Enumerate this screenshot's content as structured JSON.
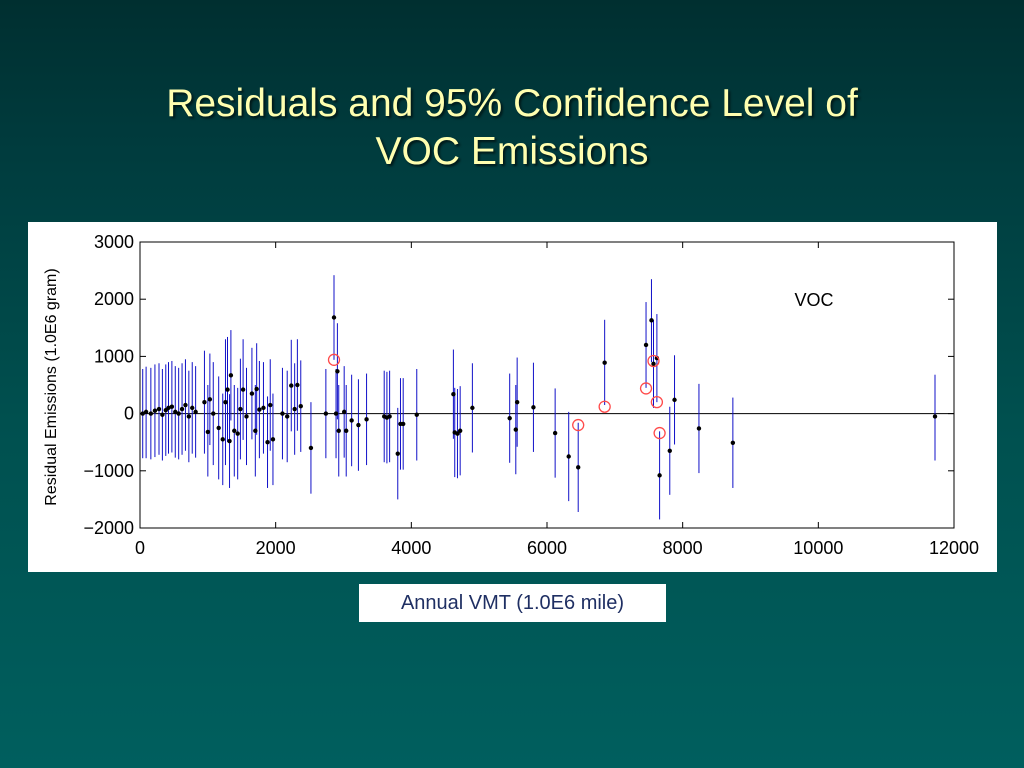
{
  "slide": {
    "title_line1": "Residuals and 95% Confidence Level of",
    "title_line2": "VOC Emissions"
  },
  "colors": {
    "title": "#ffffb0",
    "background_top": "#002f30",
    "background_bottom": "#005f5e",
    "error_bar": "#1010c8",
    "point": "#000000",
    "outlier_circle": "#ff4a4a",
    "x_label_text": "#1f2f63"
  },
  "chart_data": {
    "type": "scatter",
    "title": "",
    "annotation": "VOC",
    "xlabel": "Annual VMT (1.0E6 mile)",
    "ylabel": "Residual Emissions (1.0E6 gram)",
    "xlim": [
      0,
      12000
    ],
    "ylim": [
      -2000,
      3000
    ],
    "xticks": [
      0,
      2000,
      4000,
      6000,
      8000,
      10000,
      12000
    ],
    "yticks": [
      -2000,
      -1000,
      0,
      1000,
      2000,
      3000
    ],
    "xtick_labels": [
      "0",
      "2000",
      "4000",
      "6000",
      "8000",
      "10000",
      "12000"
    ],
    "ytick_labels": [
      "−2000",
      "−1000",
      "0",
      "1000",
      "2000",
      "3000"
    ],
    "zero_line": true,
    "grid": false,
    "points": [
      {
        "x": 40,
        "y": 0,
        "lo": -780,
        "hi": 780
      },
      {
        "x": 90,
        "y": 30,
        "lo": -780,
        "hi": 820
      },
      {
        "x": 160,
        "y": 0,
        "lo": -800,
        "hi": 800
      },
      {
        "x": 220,
        "y": 50,
        "lo": -760,
        "hi": 860
      },
      {
        "x": 280,
        "y": 80,
        "lo": -720,
        "hi": 880
      },
      {
        "x": 330,
        "y": -20,
        "lo": -820,
        "hi": 780
      },
      {
        "x": 380,
        "y": 60,
        "lo": -740,
        "hi": 860
      },
      {
        "x": 420,
        "y": 100,
        "lo": -700,
        "hi": 900
      },
      {
        "x": 470,
        "y": 120,
        "lo": -680,
        "hi": 920
      },
      {
        "x": 520,
        "y": 30,
        "lo": -770,
        "hi": 830
      },
      {
        "x": 570,
        "y": 0,
        "lo": -800,
        "hi": 800
      },
      {
        "x": 620,
        "y": 80,
        "lo": -720,
        "hi": 880
      },
      {
        "x": 670,
        "y": 150,
        "lo": -650,
        "hi": 950
      },
      {
        "x": 720,
        "y": -50,
        "lo": -850,
        "hi": 750
      },
      {
        "x": 770,
        "y": 100,
        "lo": -700,
        "hi": 900
      },
      {
        "x": 820,
        "y": 30,
        "lo": -770,
        "hi": 830
      },
      {
        "x": 950,
        "y": 200,
        "lo": -700,
        "hi": 1100
      },
      {
        "x": 1000,
        "y": -320,
        "lo": -1100,
        "hi": 500
      },
      {
        "x": 1030,
        "y": 250,
        "lo": -550,
        "hi": 1050
      },
      {
        "x": 1080,
        "y": 0,
        "lo": -900,
        "hi": 900
      },
      {
        "x": 1160,
        "y": -250,
        "lo": -1150,
        "hi": 650
      },
      {
        "x": 1220,
        "y": -450,
        "lo": -1250,
        "hi": 350
      },
      {
        "x": 1260,
        "y": 200,
        "lo": -900,
        "hi": 1300
      },
      {
        "x": 1290,
        "y": 420,
        "lo": -500,
        "hi": 1340
      },
      {
        "x": 1320,
        "y": -480,
        "lo": -1300,
        "hi": 340
      },
      {
        "x": 1340,
        "y": 670,
        "lo": -120,
        "hi": 1460
      },
      {
        "x": 1390,
        "y": -300,
        "lo": -1100,
        "hi": 500
      },
      {
        "x": 1440,
        "y": -350,
        "lo": -1150,
        "hi": 450
      },
      {
        "x": 1480,
        "y": 80,
        "lo": -800,
        "hi": 960
      },
      {
        "x": 1520,
        "y": 420,
        "lo": -460,
        "hi": 1300
      },
      {
        "x": 1570,
        "y": -50,
        "lo": -900,
        "hi": 800
      },
      {
        "x": 1650,
        "y": 350,
        "lo": -450,
        "hi": 1150
      },
      {
        "x": 1700,
        "y": -300,
        "lo": -1100,
        "hi": 500
      },
      {
        "x": 1720,
        "y": 430,
        "lo": -370,
        "hi": 1230
      },
      {
        "x": 1760,
        "y": 70,
        "lo": -780,
        "hi": 920
      },
      {
        "x": 1820,
        "y": 100,
        "lo": -700,
        "hi": 900
      },
      {
        "x": 1880,
        "y": -500,
        "lo": -1300,
        "hi": 300
      },
      {
        "x": 1920,
        "y": 150,
        "lo": -650,
        "hi": 950
      },
      {
        "x": 1960,
        "y": -450,
        "lo": -1250,
        "hi": 350
      },
      {
        "x": 2100,
        "y": 0,
        "lo": -800,
        "hi": 800
      },
      {
        "x": 2170,
        "y": -50,
        "lo": -850,
        "hi": 750
      },
      {
        "x": 2230,
        "y": 490,
        "lo": -310,
        "hi": 1290
      },
      {
        "x": 2280,
        "y": 80,
        "lo": -720,
        "hi": 880
      },
      {
        "x": 2320,
        "y": 500,
        "lo": -300,
        "hi": 1300
      },
      {
        "x": 2370,
        "y": 130,
        "lo": -670,
        "hi": 930
      },
      {
        "x": 2520,
        "y": -600,
        "lo": -1400,
        "hi": 200
      },
      {
        "x": 2740,
        "y": 0,
        "lo": -780,
        "hi": 780
      },
      {
        "x": 2860,
        "y": 1680,
        "lo": 940,
        "hi": 2420
      },
      {
        "x": 2890,
        "y": 0,
        "lo": -780,
        "hi": 780
      },
      {
        "x": 2910,
        "y": 740,
        "lo": -100,
        "hi": 1580
      },
      {
        "x": 2930,
        "y": -300,
        "lo": -1100,
        "hi": 500
      },
      {
        "x": 3010,
        "y": 30,
        "lo": -770,
        "hi": 830
      },
      {
        "x": 3040,
        "y": -300,
        "lo": -1100,
        "hi": 500
      },
      {
        "x": 3120,
        "y": -120,
        "lo": -920,
        "hi": 680
      },
      {
        "x": 3220,
        "y": -200,
        "lo": -1000,
        "hi": 600
      },
      {
        "x": 3340,
        "y": -100,
        "lo": -900,
        "hi": 700
      },
      {
        "x": 3600,
        "y": -50,
        "lo": -850,
        "hi": 750
      },
      {
        "x": 3640,
        "y": -70,
        "lo": -870,
        "hi": 730
      },
      {
        "x": 3680,
        "y": -50,
        "lo": -850,
        "hi": 750
      },
      {
        "x": 3800,
        "y": -700,
        "lo": -1500,
        "hi": 100
      },
      {
        "x": 3840,
        "y": -180,
        "lo": -980,
        "hi": 620
      },
      {
        "x": 3880,
        "y": -180,
        "lo": -980,
        "hi": 620
      },
      {
        "x": 4080,
        "y": -20,
        "lo": -820,
        "hi": 780
      },
      {
        "x": 4620,
        "y": 340,
        "lo": -440,
        "hi": 1120
      },
      {
        "x": 4640,
        "y": -330,
        "lo": -1110,
        "hi": 450
      },
      {
        "x": 4680,
        "y": -350,
        "lo": -1130,
        "hi": 430
      },
      {
        "x": 4720,
        "y": -300,
        "lo": -1080,
        "hi": 480
      },
      {
        "x": 4900,
        "y": 100,
        "lo": -680,
        "hi": 880
      },
      {
        "x": 5450,
        "y": -80,
        "lo": -860,
        "hi": 700
      },
      {
        "x": 5540,
        "y": -280,
        "lo": -1060,
        "hi": 500
      },
      {
        "x": 5560,
        "y": 200,
        "lo": -580,
        "hi": 980
      },
      {
        "x": 5800,
        "y": 110,
        "lo": -670,
        "hi": 890
      },
      {
        "x": 6120,
        "y": -340,
        "lo": -1120,
        "hi": 440
      },
      {
        "x": 6320,
        "y": -750,
        "lo": -1530,
        "hi": 30
      },
      {
        "x": 6460,
        "y": -940,
        "lo": -1720,
        "hi": -160
      },
      {
        "x": 6850,
        "y": 890,
        "lo": 150,
        "hi": 1640
      },
      {
        "x": 7460,
        "y": 1200,
        "lo": 450,
        "hi": 1950
      },
      {
        "x": 7540,
        "y": 1630,
        "lo": 900,
        "hi": 2350
      },
      {
        "x": 7570,
        "y": 870,
        "lo": 100,
        "hi": 1640
      },
      {
        "x": 7620,
        "y": 970,
        "lo": 200,
        "hi": 1740
      },
      {
        "x": 7660,
        "y": -1080,
        "lo": -1850,
        "hi": -310
      },
      {
        "x": 7810,
        "y": -650,
        "lo": -1420,
        "hi": 120
      },
      {
        "x": 7880,
        "y": 240,
        "lo": -540,
        "hi": 1020
      },
      {
        "x": 8240,
        "y": -260,
        "lo": -1040,
        "hi": 520
      },
      {
        "x": 8740,
        "y": -510,
        "lo": -1300,
        "hi": 280
      },
      {
        "x": 11720,
        "y": -50,
        "lo": -820,
        "hi": 680
      }
    ],
    "outliers": [
      {
        "x": 2860,
        "y": 940
      },
      {
        "x": 6460,
        "y": -200
      },
      {
        "x": 6850,
        "y": 120
      },
      {
        "x": 7460,
        "y": 440
      },
      {
        "x": 7570,
        "y": 920
      },
      {
        "x": 7620,
        "y": 200
      },
      {
        "x": 7660,
        "y": -340
      }
    ]
  }
}
